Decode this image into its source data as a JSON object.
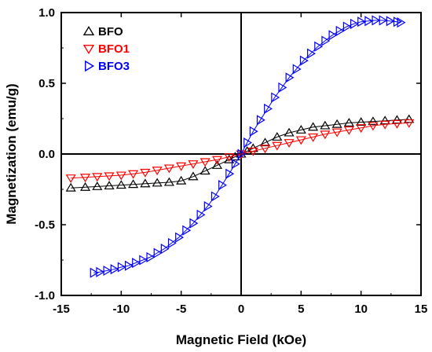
{
  "chart_data": {
    "type": "scatter",
    "xlabel": "Magnetic Field (kOe)",
    "ylabel": "Magnetization (emu/g)",
    "xlim": [
      -15,
      15
    ],
    "ylim": [
      -1.0,
      1.0
    ],
    "xticks": [
      -15,
      -10,
      -5,
      0,
      5,
      10,
      15
    ],
    "yticks": [
      -1.0,
      -0.5,
      0.0,
      0.5,
      1.0
    ],
    "xtick_labels": [
      "-15",
      "-10",
      "-5",
      "0",
      "5",
      "10",
      "15"
    ],
    "ytick_labels": [
      "-1.0",
      "-0.5",
      "0.0",
      "0.5",
      "1.0"
    ],
    "grid": false,
    "zero_lines": true,
    "legend_position": "top-left",
    "series": [
      {
        "name": "BFO",
        "marker": "triangle-up",
        "color": "#000000",
        "x": [
          -14.2,
          -13.0,
          -12.0,
          -11.0,
          -10.0,
          -9.0,
          -8.0,
          -7.0,
          -6.0,
          -5.0,
          -4.0,
          -3.0,
          -2.0,
          -1.0,
          -0.5,
          0.0,
          0.5,
          1.0,
          2.0,
          3.0,
          4.0,
          5.0,
          6.0,
          7.0,
          8.0,
          9.0,
          10.0,
          11.0,
          12.0,
          13.0,
          14.0
        ],
        "y": [
          -0.24,
          -0.235,
          -0.23,
          -0.225,
          -0.22,
          -0.215,
          -0.21,
          -0.205,
          -0.2,
          -0.19,
          -0.16,
          -0.12,
          -0.08,
          -0.04,
          -0.02,
          0.0,
          0.02,
          0.04,
          0.08,
          0.12,
          0.15,
          0.17,
          0.19,
          0.2,
          0.21,
          0.22,
          0.225,
          0.23,
          0.235,
          0.24,
          0.245
        ]
      },
      {
        "name": "BFO1",
        "marker": "triangle-down",
        "color": "#ff0000",
        "x": [
          -14.2,
          -13.0,
          -12.0,
          -11.0,
          -10.0,
          -9.0,
          -8.0,
          -7.0,
          -6.0,
          -5.0,
          -4.0,
          -3.0,
          -2.0,
          -1.0,
          0.0,
          1.0,
          2.0,
          3.0,
          4.0,
          5.0,
          6.0,
          7.0,
          8.0,
          9.0,
          10.0,
          11.0,
          12.0,
          13.0,
          14.0
        ],
        "y": [
          -0.17,
          -0.165,
          -0.16,
          -0.155,
          -0.15,
          -0.14,
          -0.13,
          -0.115,
          -0.1,
          -0.085,
          -0.07,
          -0.055,
          -0.04,
          -0.02,
          0.0,
          0.02,
          0.04,
          0.06,
          0.08,
          0.1,
          0.12,
          0.14,
          0.155,
          0.17,
          0.185,
          0.2,
          0.21,
          0.215,
          0.22
        ]
      },
      {
        "name": "BFO3",
        "marker": "triangle-right",
        "color": "#0000ff",
        "x": [
          -12.3,
          -11.8,
          -11.2,
          -10.6,
          -10.0,
          -9.4,
          -8.8,
          -8.2,
          -7.6,
          -7.0,
          -6.4,
          -5.8,
          -5.2,
          -4.6,
          -4.0,
          -3.4,
          -2.8,
          -2.2,
          -1.6,
          -1.0,
          -0.5,
          0.0,
          0.5,
          1.0,
          1.6,
          2.2,
          2.8,
          3.4,
          4.0,
          4.6,
          5.2,
          5.8,
          6.4,
          7.0,
          7.6,
          8.2,
          8.8,
          9.4,
          10.0,
          10.6,
          11.2,
          11.8,
          12.4,
          13.0,
          13.3
        ],
        "y": [
          -0.84,
          -0.835,
          -0.825,
          -0.815,
          -0.8,
          -0.79,
          -0.77,
          -0.75,
          -0.73,
          -0.7,
          -0.67,
          -0.63,
          -0.59,
          -0.54,
          -0.49,
          -0.43,
          -0.37,
          -0.3,
          -0.22,
          -0.14,
          -0.07,
          0.0,
          0.08,
          0.16,
          0.24,
          0.32,
          0.4,
          0.47,
          0.54,
          0.6,
          0.66,
          0.71,
          0.76,
          0.8,
          0.84,
          0.87,
          0.9,
          0.92,
          0.935,
          0.94,
          0.945,
          0.945,
          0.94,
          0.935,
          0.93
        ]
      }
    ]
  }
}
